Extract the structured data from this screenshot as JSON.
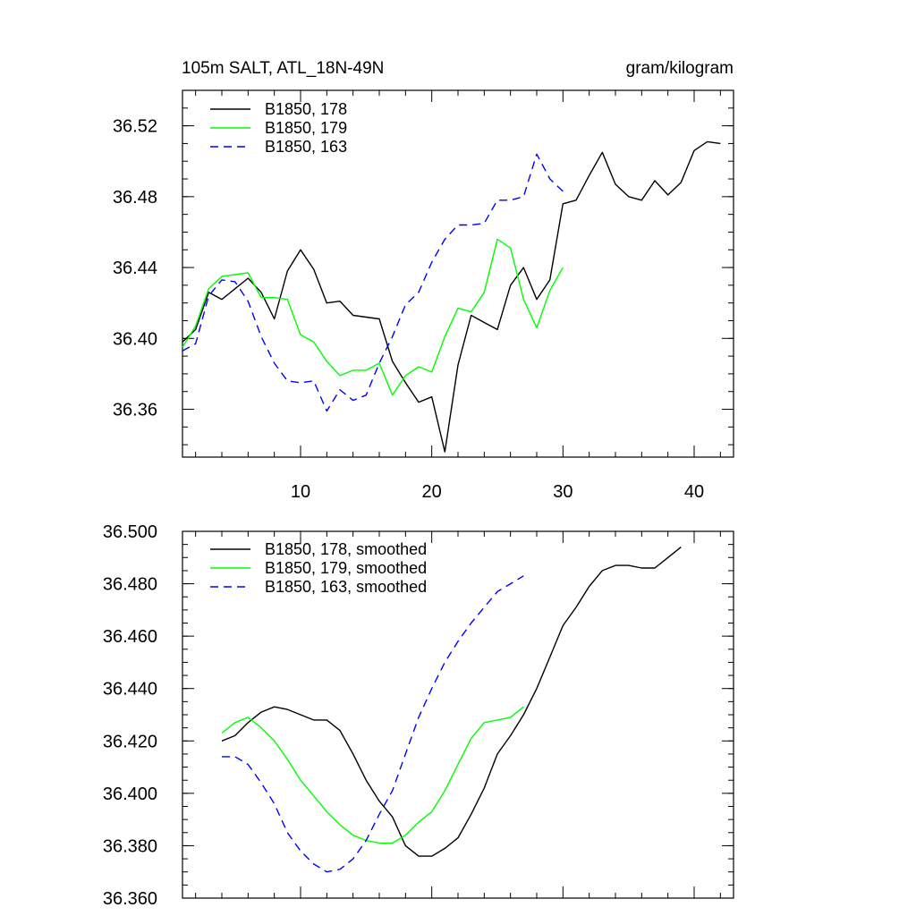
{
  "chart_data": [
    {
      "type": "line",
      "title": "105m SALT, ATL_18N-49N",
      "units": "gram/kilogram",
      "xlim": [
        1,
        43
      ],
      "ylim": [
        36.333,
        36.54
      ],
      "x_ticks": [
        10,
        20,
        30,
        40
      ],
      "x_tick_labels": [
        "10",
        "20",
        "30",
        "40"
      ],
      "y_ticks": [
        36.36,
        36.4,
        36.44,
        36.48,
        36.52
      ],
      "y_tick_labels": [
        "36.36",
        "36.40",
        "36.44",
        "36.48",
        "36.52"
      ],
      "legend_position": "top-left",
      "series": [
        {
          "name": "B1850, 178",
          "color": "#000000",
          "dash": "solid",
          "x": [
            1,
            2,
            3,
            4,
            5,
            6,
            7,
            8,
            9,
            10,
            11,
            12,
            13,
            14,
            15,
            16,
            17,
            18,
            19,
            20,
            21,
            22,
            23,
            24,
            25,
            26,
            27,
            28,
            29,
            30,
            31,
            32,
            33,
            34,
            35,
            36,
            37,
            38,
            39,
            40,
            41,
            42
          ],
          "values": [
            36.398,
            36.405,
            36.426,
            36.422,
            36.428,
            36.434,
            36.426,
            36.411,
            36.438,
            36.45,
            36.439,
            36.42,
            36.421,
            36.413,
            36.412,
            36.411,
            36.387,
            36.375,
            36.364,
            36.367,
            36.336,
            36.385,
            36.413,
            36.409,
            36.405,
            36.43,
            36.44,
            36.422,
            36.433,
            36.476,
            36.478,
            36.492,
            36.505,
            36.487,
            36.48,
            36.478,
            36.489,
            36.481,
            36.488,
            36.506,
            36.511,
            36.51
          ]
        },
        {
          "name": "B1850, 179",
          "color": "#00ff00",
          "dash": "solid",
          "x": [
            1,
            2,
            3,
            4,
            5,
            6,
            7,
            8,
            9,
            10,
            11,
            12,
            13,
            14,
            15,
            16,
            17,
            18,
            19,
            20,
            21,
            22,
            23,
            24,
            25,
            26,
            27,
            28,
            29,
            30
          ],
          "values": [
            36.395,
            36.407,
            36.428,
            36.435,
            36.436,
            36.437,
            36.423,
            36.423,
            36.422,
            36.402,
            36.398,
            36.387,
            36.379,
            36.382,
            36.382,
            36.386,
            36.368,
            36.379,
            36.384,
            36.381,
            36.401,
            36.417,
            36.415,
            36.426,
            36.456,
            36.451,
            36.422,
            36.406,
            36.427,
            36.44
          ]
        },
        {
          "name": "B1850, 163",
          "color": "#0000ff",
          "dash": "dashed",
          "x": [
            1,
            2,
            3,
            4,
            5,
            6,
            7,
            8,
            9,
            10,
            11,
            12,
            13,
            14,
            15,
            16,
            17,
            18,
            19,
            20,
            21,
            22,
            23,
            24,
            25,
            26,
            27,
            28,
            29,
            30
          ],
          "values": [
            36.393,
            36.397,
            36.424,
            36.433,
            36.432,
            36.421,
            36.401,
            36.386,
            36.376,
            36.375,
            36.376,
            36.359,
            36.371,
            36.365,
            36.368,
            36.386,
            36.401,
            36.419,
            36.426,
            36.443,
            36.456,
            36.464,
            36.464,
            36.465,
            36.478,
            36.478,
            36.48,
            36.504,
            36.49,
            36.483
          ]
        }
      ]
    },
    {
      "type": "line",
      "title": "",
      "units": "",
      "xlim": [
        1,
        43
      ],
      "ylim": [
        36.36,
        36.5
      ],
      "x_ticks": [
        10,
        20,
        30,
        40
      ],
      "x_tick_labels": [],
      "y_ticks": [
        36.36,
        36.38,
        36.4,
        36.42,
        36.44,
        36.46,
        36.48,
        36.5
      ],
      "y_tick_labels": [
        "36.360",
        "36.380",
        "36.400",
        "36.420",
        "36.440",
        "36.460",
        "36.480",
        "36.500"
      ],
      "legend_position": "top-left",
      "series": [
        {
          "name": "B1850, 178, smoothed",
          "color": "#000000",
          "dash": "solid",
          "x": [
            4,
            5,
            6,
            7,
            8,
            9,
            10,
            11,
            12,
            13,
            14,
            15,
            16,
            17,
            18,
            19,
            20,
            21,
            22,
            23,
            24,
            25,
            26,
            27,
            28,
            29,
            30,
            31,
            32,
            33,
            34,
            35,
            36,
            37,
            38,
            39
          ],
          "values": [
            36.42,
            36.422,
            36.427,
            36.431,
            36.433,
            36.432,
            36.43,
            36.428,
            36.428,
            36.424,
            36.415,
            36.405,
            36.397,
            36.391,
            36.38,
            36.376,
            36.376,
            36.379,
            36.383,
            36.392,
            36.402,
            36.415,
            36.422,
            36.43,
            36.44,
            36.452,
            36.464,
            36.471,
            36.479,
            36.485,
            36.487,
            36.487,
            36.486,
            36.486,
            36.49,
            36.494
          ]
        },
        {
          "name": "B1850, 179, smoothed",
          "color": "#00ff00",
          "dash": "solid",
          "x": [
            4,
            5,
            6,
            7,
            8,
            9,
            10,
            11,
            12,
            13,
            14,
            15,
            16,
            17,
            18,
            19,
            20,
            21,
            22,
            23,
            24,
            25,
            26,
            27
          ],
          "values": [
            36.423,
            36.427,
            36.429,
            36.425,
            36.42,
            36.413,
            36.405,
            36.399,
            36.393,
            36.388,
            36.384,
            36.382,
            36.381,
            36.381,
            36.384,
            36.389,
            36.393,
            36.401,
            36.411,
            36.421,
            36.427,
            36.428,
            36.429,
            36.433
          ]
        },
        {
          "name": "B1850, 163, smoothed",
          "color": "#0000ff",
          "dash": "dashed",
          "x": [
            4,
            5,
            6,
            7,
            8,
            9,
            10,
            11,
            12,
            13,
            14,
            15,
            16,
            17,
            18,
            19,
            20,
            21,
            22,
            23,
            24,
            25,
            26,
            27
          ],
          "values": [
            36.414,
            36.414,
            36.411,
            36.404,
            36.396,
            36.385,
            36.378,
            36.373,
            36.37,
            36.371,
            36.375,
            36.382,
            36.392,
            36.401,
            36.415,
            36.429,
            36.44,
            36.45,
            36.458,
            36.465,
            36.471,
            36.477,
            36.48,
            36.483
          ]
        }
      ]
    }
  ]
}
